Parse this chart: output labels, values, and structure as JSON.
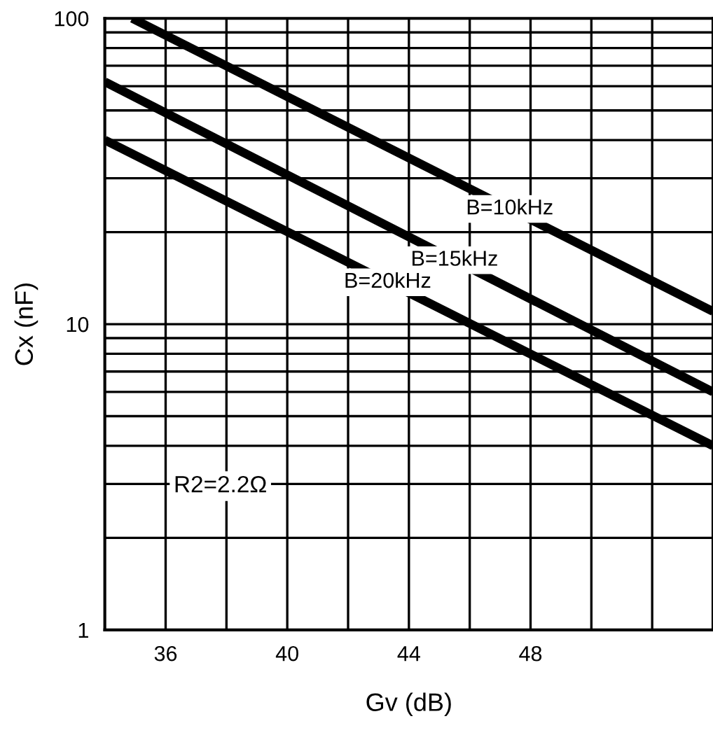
{
  "chart_data": {
    "type": "line",
    "xlabel": "Gv (dB)",
    "ylabel": "Cx (nF)",
    "log": "y",
    "grid": true,
    "legend": false,
    "marker": "none",
    "line_style": "solid",
    "xlim": [
      34,
      54
    ],
    "ylim": [
      1,
      100
    ],
    "xticks": [
      36,
      {
        "value": 38,
        "label": null
      },
      40,
      {
        "value": 42,
        "label": null
      },
      44,
      {
        "value": 46,
        "label": null
      },
      48,
      {
        "value": 50,
        "label": null
      },
      {
        "value": 52,
        "label": null
      }
    ],
    "yticks": [
      1,
      {
        "value": 2,
        "label": null
      },
      {
        "value": 3,
        "label": null
      },
      {
        "value": 4,
        "label": null
      },
      {
        "value": 5,
        "label": null
      },
      {
        "value": 6,
        "label": null
      },
      {
        "value": 7,
        "label": null
      },
      {
        "value": 8,
        "label": null
      },
      {
        "value": 9,
        "label": null
      },
      10,
      {
        "value": 20,
        "label": null
      },
      {
        "value": 30,
        "label": null
      },
      {
        "value": 40,
        "label": null
      },
      {
        "value": 50,
        "label": null
      },
      {
        "value": 60,
        "label": null
      },
      {
        "value": 70,
        "label": null
      },
      {
        "value": 80,
        "label": null
      },
      {
        "value": 90,
        "label": null
      },
      100
    ],
    "series": [
      {
        "name": "B=10kHz",
        "color": "#000000",
        "x": [
          34.9,
          54
        ],
        "values": [
          100,
          11
        ]
      },
      {
        "name": "B=15kHz",
        "color": "#000000",
        "x": [
          34,
          54
        ],
        "values": [
          62,
          6
        ]
      },
      {
        "name": "B=20kHz",
        "color": "#000000",
        "x": [
          34,
          54
        ],
        "values": [
          40,
          4
        ]
      }
    ],
    "annotations": [
      "R2=2.2Ω"
    ]
  }
}
